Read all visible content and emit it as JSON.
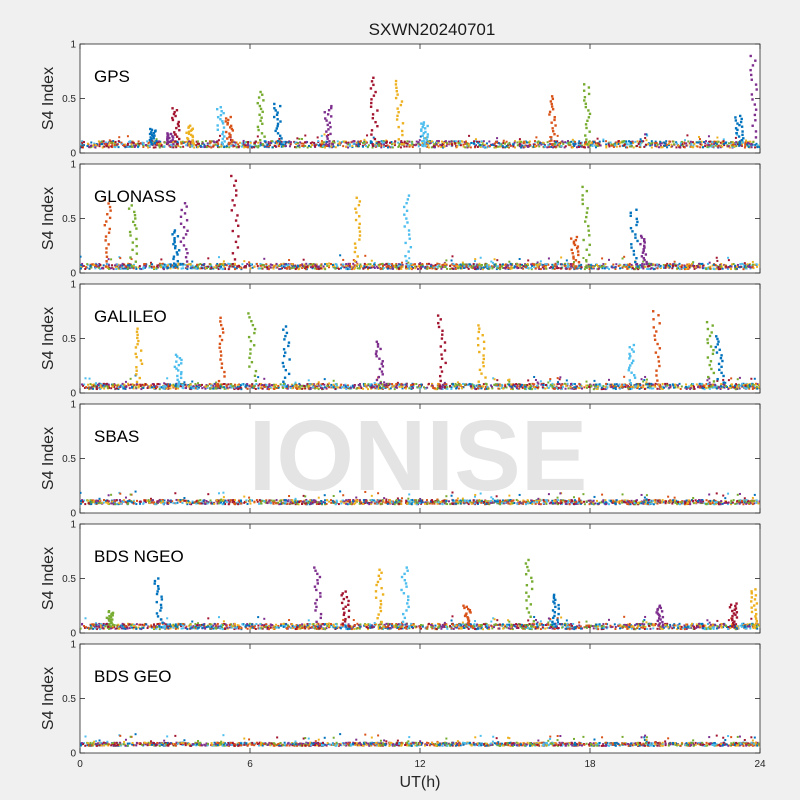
{
  "chart_data": {
    "type": "scatter",
    "title": "SXWN20240701",
    "watermark": "IONISE",
    "xlabel": "UT(h)",
    "ylabel": "S4 Index",
    "xlim": [
      0,
      24
    ],
    "ylim": [
      0,
      1
    ],
    "xticks": [
      "0",
      "6",
      "12",
      "18",
      "24"
    ],
    "yticks": [
      "0",
      "0.5",
      "1"
    ],
    "series_colors": [
      "#0072bd",
      "#d95319",
      "#edb120",
      "#7e2f8e",
      "#77ac30",
      "#4dbeee",
      "#a2142f"
    ],
    "panels": [
      {
        "name": "GPS",
        "baseline": {
          "level": 0.08,
          "spread": 0.06
        },
        "peaks": [
          {
            "x": 2.6,
            "y": 0.22
          },
          {
            "x": 3.2,
            "y": 0.18
          },
          {
            "x": 3.4,
            "y": 0.41
          },
          {
            "x": 3.9,
            "y": 0.25
          },
          {
            "x": 5.0,
            "y": 0.42
          },
          {
            "x": 5.3,
            "y": 0.33
          },
          {
            "x": 6.4,
            "y": 0.56
          },
          {
            "x": 7.0,
            "y": 0.45
          },
          {
            "x": 8.8,
            "y": 0.43
          },
          {
            "x": 10.4,
            "y": 0.69
          },
          {
            "x": 11.3,
            "y": 0.66
          },
          {
            "x": 12.2,
            "y": 0.28
          },
          {
            "x": 16.7,
            "y": 0.52
          },
          {
            "x": 17.9,
            "y": 0.63
          },
          {
            "x": 23.3,
            "y": 0.34
          },
          {
            "x": 23.8,
            "y": 0.89
          }
        ]
      },
      {
        "name": "GLONASS",
        "baseline": {
          "level": 0.06,
          "spread": 0.05
        },
        "peaks": [
          {
            "x": 1.0,
            "y": 0.67
          },
          {
            "x": 1.9,
            "y": 0.62
          },
          {
            "x": 3.4,
            "y": 0.39
          },
          {
            "x": 3.7,
            "y": 0.64
          },
          {
            "x": 5.5,
            "y": 0.89
          },
          {
            "x": 9.8,
            "y": 0.69
          },
          {
            "x": 11.6,
            "y": 0.71
          },
          {
            "x": 17.5,
            "y": 0.33
          },
          {
            "x": 17.9,
            "y": 0.79
          },
          {
            "x": 19.6,
            "y": 0.58
          },
          {
            "x": 19.9,
            "y": 0.34
          }
        ]
      },
      {
        "name": "GALILEO",
        "baseline": {
          "level": 0.06,
          "spread": 0.05
        },
        "peaks": [
          {
            "x": 2.1,
            "y": 0.59
          },
          {
            "x": 3.5,
            "y": 0.35
          },
          {
            "x": 5.0,
            "y": 0.69
          },
          {
            "x": 6.1,
            "y": 0.73
          },
          {
            "x": 7.3,
            "y": 0.61
          },
          {
            "x": 10.6,
            "y": 0.47
          },
          {
            "x": 12.8,
            "y": 0.71
          },
          {
            "x": 14.2,
            "y": 0.62
          },
          {
            "x": 19.5,
            "y": 0.44
          },
          {
            "x": 20.4,
            "y": 0.75
          },
          {
            "x": 22.3,
            "y": 0.65
          },
          {
            "x": 22.6,
            "y": 0.52
          }
        ]
      },
      {
        "name": "SBAS",
        "baseline": {
          "level": 0.1,
          "spread": 0.04
        },
        "peaks": []
      },
      {
        "name": "BDS NGEO",
        "baseline": {
          "level": 0.06,
          "spread": 0.05
        },
        "peaks": [
          {
            "x": 1.1,
            "y": 0.2
          },
          {
            "x": 2.8,
            "y": 0.5
          },
          {
            "x": 8.4,
            "y": 0.6
          },
          {
            "x": 9.4,
            "y": 0.38
          },
          {
            "x": 10.6,
            "y": 0.58
          },
          {
            "x": 11.5,
            "y": 0.6
          },
          {
            "x": 13.7,
            "y": 0.25
          },
          {
            "x": 15.9,
            "y": 0.67
          },
          {
            "x": 16.8,
            "y": 0.35
          },
          {
            "x": 20.5,
            "y": 0.25
          },
          {
            "x": 23.1,
            "y": 0.27
          },
          {
            "x": 23.8,
            "y": 0.4
          }
        ]
      },
      {
        "name": "BDS GEO",
        "baseline": {
          "level": 0.08,
          "spread": 0.03
        },
        "peaks": []
      }
    ]
  }
}
